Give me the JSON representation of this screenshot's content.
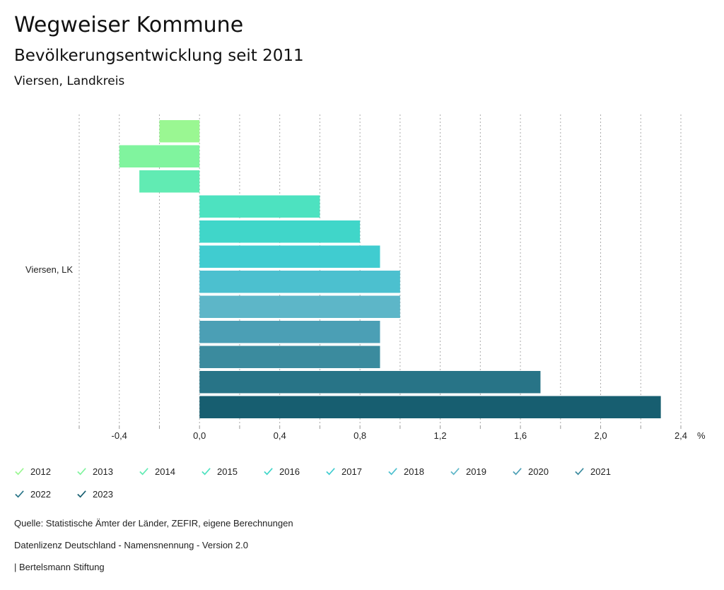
{
  "header": {
    "title": "Wegweiser Kommune",
    "subtitle": "Bevölkerungsentwicklung seit 2011",
    "region": "Viersen, Landkreis"
  },
  "footer": {
    "source": "Quelle: Statistische Ämter der Länder, ZEFIR, eigene Berechnungen",
    "license": "Datenlizenz Deutschland - Namensnennung - Version 2.0",
    "credit": "| Bertelsmann Stiftung"
  },
  "chart_data": {
    "type": "bar",
    "orientation": "horizontal",
    "categories": [
      "Viersen, LK"
    ],
    "xlim": [
      -0.6,
      2.4
    ],
    "xticks": [
      -0.4,
      0.0,
      0.4,
      0.8,
      1.2,
      1.6,
      2.0,
      2.4
    ],
    "xtick_labels": [
      "-0,4",
      "0,0",
      "0,4",
      "0,8",
      "1,2",
      "1,6",
      "2,0",
      "2,4"
    ],
    "unit": "%",
    "grid": true,
    "legend_position": "bottom",
    "series": [
      {
        "name": "2012",
        "values": [
          -0.2
        ],
        "color": "#9af792"
      },
      {
        "name": "2013",
        "values": [
          -0.4
        ],
        "color": "#80f49e"
      },
      {
        "name": "2014",
        "values": [
          -0.3
        ],
        "color": "#61ebb3"
      },
      {
        "name": "2015",
        "values": [
          0.6
        ],
        "color": "#4de2c0"
      },
      {
        "name": "2016",
        "values": [
          0.8
        ],
        "color": "#40d6c9"
      },
      {
        "name": "2017",
        "values": [
          0.9
        ],
        "color": "#40ccd0"
      },
      {
        "name": "2018",
        "values": [
          1.0
        ],
        "color": "#4cc0cf"
      },
      {
        "name": "2019",
        "values": [
          1.0
        ],
        "color": "#5db6c8"
      },
      {
        "name": "2020",
        "values": [
          0.9
        ],
        "color": "#4b9fb5"
      },
      {
        "name": "2021",
        "values": [
          0.9
        ],
        "color": "#3b8b9e"
      },
      {
        "name": "2022",
        "values": [
          1.7
        ],
        "color": "#287487"
      },
      {
        "name": "2023",
        "values": [
          2.3
        ],
        "color": "#175e70"
      }
    ]
  }
}
